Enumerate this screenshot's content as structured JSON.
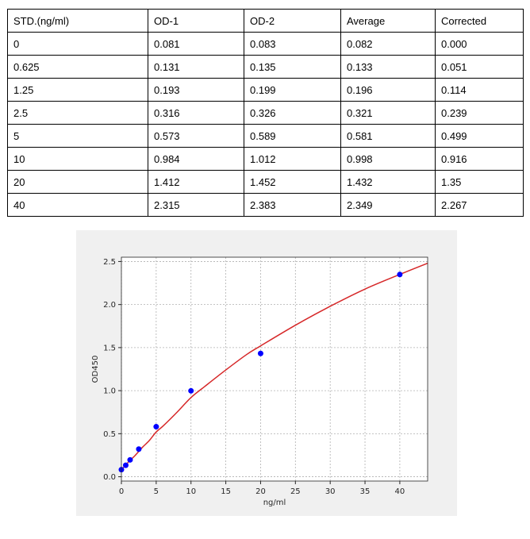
{
  "table": {
    "headers": [
      "STD.(ng/ml)",
      "OD-1",
      "OD-2",
      "Average",
      "Corrected"
    ],
    "rows": [
      [
        "0",
        "0.081",
        "0.083",
        "0.082",
        "0.000"
      ],
      [
        "0.625",
        "0.131",
        "0.135",
        "0.133",
        "0.051"
      ],
      [
        "1.25",
        "0.193",
        "0.199",
        "0.196",
        "0.114"
      ],
      [
        "2.5",
        "0.316",
        "0.326",
        "0.321",
        "0.239"
      ],
      [
        "5",
        "0.573",
        "0.589",
        "0.581",
        "0.499"
      ],
      [
        "10",
        "0.984",
        "1.012",
        "0.998",
        "0.916"
      ],
      [
        "20",
        "1.412",
        "1.452",
        "1.432",
        "1.35"
      ],
      [
        "40",
        "2.315",
        "2.383",
        "2.349",
        "2.267"
      ]
    ]
  },
  "chart_data": {
    "type": "scatter",
    "xlabel": "ng/ml",
    "ylabel": "OD450",
    "xlim": [
      0,
      44
    ],
    "ylim": [
      -0.05,
      2.55
    ],
    "xticks": [
      0,
      5,
      10,
      15,
      20,
      25,
      30,
      35,
      40
    ],
    "yticks": [
      0.0,
      0.5,
      1.0,
      1.5,
      2.0,
      2.5
    ],
    "xtick_labels": [
      "0",
      "5",
      "10",
      "15",
      "20",
      "25",
      "30",
      "35",
      "40"
    ],
    "ytick_labels": [
      "0.0",
      "0.5",
      "1.0",
      "1.5",
      "2.0",
      "2.5"
    ],
    "grid": true,
    "series": [
      {
        "kind": "points",
        "color": "#0000ff",
        "x": [
          0,
          0.625,
          1.25,
          2.5,
          5,
          10,
          20,
          40
        ],
        "y": [
          0.082,
          0.133,
          0.196,
          0.321,
          0.581,
          0.998,
          1.432,
          2.349
        ]
      },
      {
        "kind": "fit-curve",
        "color": "#d62728",
        "x": [
          0,
          1,
          2,
          3,
          4,
          5,
          6,
          8,
          10,
          12,
          15,
          18,
          20,
          25,
          30,
          35,
          40,
          44
        ],
        "y": [
          0.08,
          0.17,
          0.25,
          0.34,
          0.42,
          0.52,
          0.59,
          0.75,
          0.92,
          1.05,
          1.24,
          1.42,
          1.52,
          1.76,
          1.98,
          2.18,
          2.35,
          2.48
        ]
      }
    ]
  }
}
